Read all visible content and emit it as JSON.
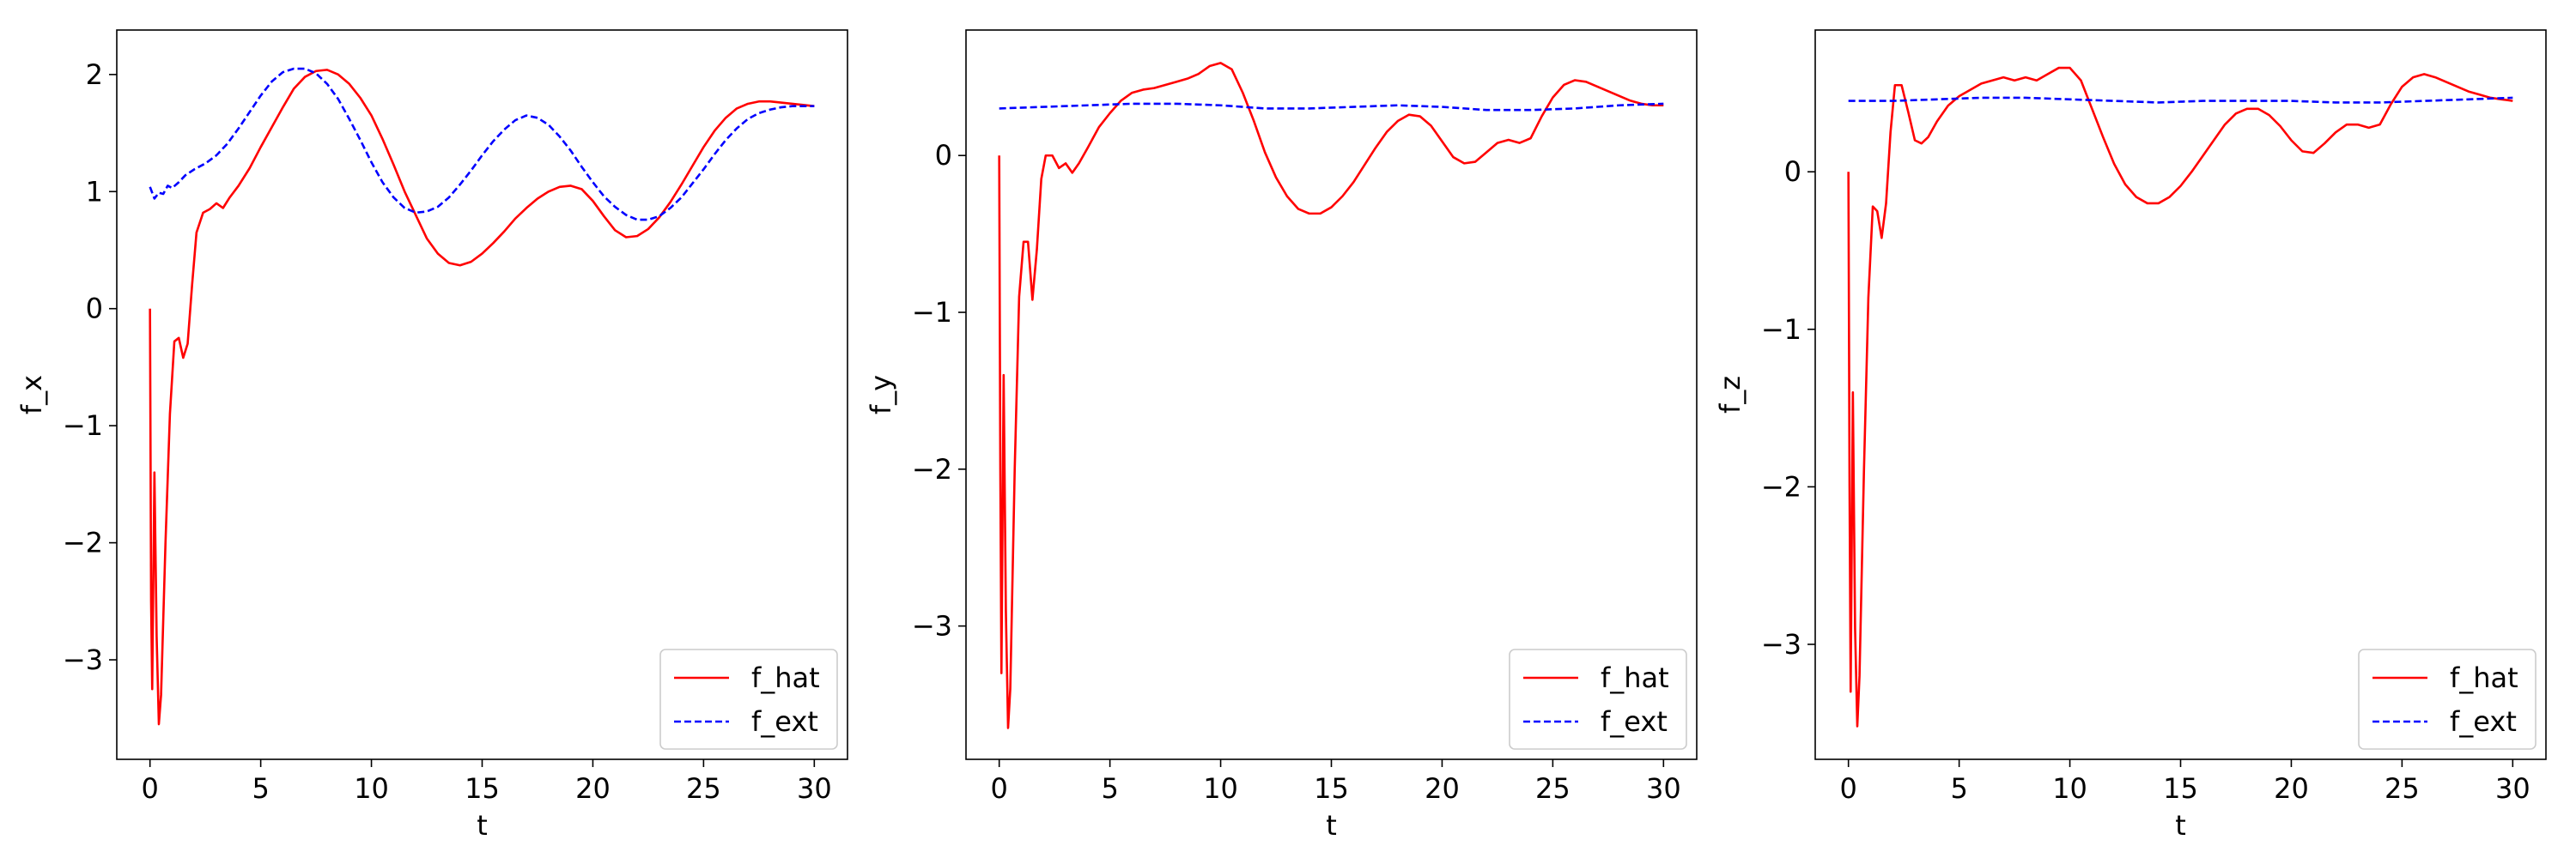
{
  "chart_data": [
    {
      "type": "line",
      "title": "",
      "xlabel": "t",
      "ylabel": "f_x",
      "xlim": [
        -1.5,
        31.5
      ],
      "ylim": [
        -3.85,
        2.38
      ],
      "xticks": [
        0,
        5,
        10,
        15,
        20,
        25,
        30
      ],
      "yticks": [
        -3,
        -2,
        -1,
        0,
        1,
        2
      ],
      "grid": false,
      "legend_position": "lower-right",
      "series": [
        {
          "name": "f_hat",
          "color": "#ff0000",
          "style": "solid",
          "x": [
            0,
            0.05,
            0.1,
            0.2,
            0.3,
            0.4,
            0.5,
            0.7,
            0.9,
            1.1,
            1.3,
            1.5,
            1.7,
            1.9,
            2.1,
            2.4,
            2.7,
            3.0,
            3.3,
            3.6,
            4,
            4.5,
            5,
            5.5,
            6,
            6.5,
            7,
            7.5,
            8,
            8.5,
            9,
            9.5,
            10,
            10.5,
            11,
            11.5,
            12,
            12.5,
            13,
            13.5,
            14,
            14.5,
            15,
            15.5,
            16,
            16.5,
            17,
            17.5,
            18,
            18.5,
            19,
            19.5,
            20,
            20.5,
            21,
            21.5,
            22,
            22.5,
            23,
            23.5,
            24,
            24.5,
            25,
            25.5,
            26,
            26.5,
            27,
            27.5,
            28,
            28.5,
            29,
            29.5,
            30
          ],
          "values": [
            0,
            -2.5,
            -3.25,
            -1.4,
            -2.8,
            -3.55,
            -3.3,
            -2.0,
            -0.9,
            -0.28,
            -0.25,
            -0.42,
            -0.3,
            0.2,
            0.65,
            0.82,
            0.85,
            0.9,
            0.86,
            0.95,
            1.05,
            1.2,
            1.38,
            1.55,
            1.72,
            1.88,
            1.98,
            2.03,
            2.04,
            2.0,
            1.92,
            1.8,
            1.65,
            1.45,
            1.23,
            1.0,
            0.8,
            0.6,
            0.47,
            0.39,
            0.37,
            0.4,
            0.47,
            0.56,
            0.66,
            0.77,
            0.86,
            0.94,
            1.0,
            1.04,
            1.05,
            1.02,
            0.92,
            0.79,
            0.67,
            0.61,
            0.62,
            0.68,
            0.78,
            0.91,
            1.06,
            1.22,
            1.38,
            1.52,
            1.63,
            1.71,
            1.75,
            1.77,
            1.77,
            1.76,
            1.75,
            1.74,
            1.73
          ]
        },
        {
          "name": "f_ext",
          "color": "#0000ff",
          "style": "dashed",
          "x": [
            0,
            0.2,
            0.4,
            0.6,
            0.8,
            1.0,
            1.3,
            1.6,
            2.0,
            2.5,
            3,
            3.5,
            4,
            4.5,
            5,
            5.5,
            6,
            6.5,
            7,
            7.5,
            8,
            8.5,
            9,
            9.5,
            10,
            10.5,
            11,
            11.5,
            12,
            12.5,
            13,
            13.5,
            14,
            14.5,
            15,
            15.5,
            16,
            16.5,
            17,
            17.5,
            18,
            18.5,
            19,
            19.5,
            20,
            20.5,
            21,
            21.5,
            22,
            22.5,
            23,
            23.5,
            24,
            24.5,
            25,
            25.5,
            26,
            26.5,
            27,
            27.5,
            28,
            28.5,
            29,
            29.5,
            30
          ],
          "values": [
            1.04,
            0.94,
            0.99,
            0.98,
            1.05,
            1.03,
            1.08,
            1.14,
            1.19,
            1.24,
            1.31,
            1.41,
            1.54,
            1.68,
            1.82,
            1.94,
            2.02,
            2.05,
            2.05,
            2.01,
            1.92,
            1.79,
            1.62,
            1.44,
            1.25,
            1.08,
            0.95,
            0.86,
            0.82,
            0.83,
            0.87,
            0.95,
            1.06,
            1.18,
            1.31,
            1.43,
            1.53,
            1.61,
            1.65,
            1.63,
            1.57,
            1.47,
            1.35,
            1.21,
            1.08,
            0.96,
            0.87,
            0.8,
            0.76,
            0.76,
            0.79,
            0.86,
            0.95,
            1.07,
            1.19,
            1.32,
            1.44,
            1.54,
            1.62,
            1.67,
            1.7,
            1.72,
            1.73,
            1.73,
            1.73
          ]
        }
      ]
    },
    {
      "type": "line",
      "title": "",
      "xlabel": "t",
      "ylabel": "f_y",
      "xlim": [
        -1.5,
        31.5
      ],
      "ylim": [
        -3.85,
        0.8
      ],
      "xticks": [
        0,
        5,
        10,
        15,
        20,
        25,
        30
      ],
      "yticks": [
        -3,
        -2,
        -1,
        0
      ],
      "grid": false,
      "legend_position": "lower-right",
      "series": [
        {
          "name": "f_hat",
          "color": "#ff0000",
          "style": "solid",
          "x": [
            0,
            0.05,
            0.1,
            0.2,
            0.3,
            0.4,
            0.5,
            0.7,
            0.9,
            1.1,
            1.3,
            1.5,
            1.7,
            1.9,
            2.1,
            2.4,
            2.7,
            3.0,
            3.3,
            3.6,
            4,
            4.5,
            5,
            5.5,
            6,
            6.5,
            7,
            7.5,
            8,
            8.5,
            9,
            9.5,
            10,
            10.5,
            11,
            11.5,
            12,
            12.5,
            13,
            13.5,
            14,
            14.5,
            15,
            15.5,
            16,
            16.5,
            17,
            17.5,
            18,
            18.5,
            19,
            19.5,
            20,
            20.5,
            21,
            21.5,
            22,
            22.5,
            23,
            23.5,
            24,
            24.5,
            25,
            25.5,
            26,
            26.5,
            27,
            27.5,
            28,
            28.5,
            29,
            29.5,
            30
          ],
          "values": [
            0,
            -2.0,
            -3.3,
            -1.4,
            -2.9,
            -3.65,
            -3.4,
            -2.0,
            -0.9,
            -0.55,
            -0.55,
            -0.92,
            -0.6,
            -0.15,
            0.0,
            0.0,
            -0.08,
            -0.05,
            -0.11,
            -0.05,
            0.05,
            0.18,
            0.27,
            0.35,
            0.4,
            0.42,
            0.43,
            0.45,
            0.47,
            0.49,
            0.52,
            0.57,
            0.59,
            0.55,
            0.4,
            0.22,
            0.02,
            -0.14,
            -0.26,
            -0.34,
            -0.37,
            -0.37,
            -0.33,
            -0.26,
            -0.17,
            -0.06,
            0.05,
            0.15,
            0.22,
            0.26,
            0.25,
            0.19,
            0.09,
            -0.01,
            -0.05,
            -0.04,
            0.02,
            0.08,
            0.1,
            0.08,
            0.11,
            0.25,
            0.37,
            0.45,
            0.48,
            0.47,
            0.44,
            0.41,
            0.38,
            0.35,
            0.33,
            0.32,
            0.32
          ]
        },
        {
          "name": "f_ext",
          "color": "#0000ff",
          "style": "dashed",
          "x": [
            0,
            2,
            4,
            6,
            8,
            10,
            12,
            14,
            16,
            18,
            20,
            22,
            24,
            26,
            28,
            30
          ],
          "values": [
            0.3,
            0.31,
            0.32,
            0.33,
            0.33,
            0.32,
            0.3,
            0.3,
            0.31,
            0.32,
            0.31,
            0.29,
            0.29,
            0.3,
            0.32,
            0.33
          ]
        }
      ]
    },
    {
      "type": "line",
      "title": "",
      "xlabel": "t",
      "ylabel": "f_z",
      "xlim": [
        -1.5,
        31.5
      ],
      "ylim": [
        -3.73,
        0.9
      ],
      "xticks": [
        0,
        5,
        10,
        15,
        20,
        25,
        30
      ],
      "yticks": [
        -3,
        -2,
        -1,
        0
      ],
      "grid": false,
      "legend_position": "lower-right",
      "series": [
        {
          "name": "f_hat",
          "color": "#ff0000",
          "style": "solid",
          "x": [
            0,
            0.05,
            0.1,
            0.2,
            0.3,
            0.4,
            0.5,
            0.7,
            0.9,
            1.1,
            1.3,
            1.5,
            1.7,
            1.9,
            2.1,
            2.4,
            2.7,
            3.0,
            3.3,
            3.6,
            4,
            4.5,
            5,
            5.5,
            6,
            6.5,
            7,
            7.5,
            8,
            8.5,
            9,
            9.5,
            10,
            10.5,
            11,
            11.5,
            12,
            12.5,
            13,
            13.5,
            14,
            14.5,
            15,
            15.5,
            16,
            16.5,
            17,
            17.5,
            18,
            18.5,
            19,
            19.5,
            20,
            20.5,
            21,
            21.5,
            22,
            22.5,
            23,
            23.5,
            24,
            24.5,
            25,
            25.5,
            26,
            26.5,
            27,
            27.5,
            28,
            28.5,
            29,
            29.5,
            30
          ],
          "values": [
            0,
            -2.0,
            -3.3,
            -1.4,
            -2.9,
            -3.52,
            -3.2,
            -1.9,
            -0.8,
            -0.22,
            -0.25,
            -0.42,
            -0.2,
            0.25,
            0.55,
            0.55,
            0.38,
            0.2,
            0.18,
            0.22,
            0.32,
            0.42,
            0.48,
            0.52,
            0.56,
            0.58,
            0.6,
            0.58,
            0.6,
            0.58,
            0.62,
            0.66,
            0.66,
            0.58,
            0.4,
            0.22,
            0.05,
            -0.08,
            -0.16,
            -0.2,
            -0.2,
            -0.16,
            -0.09,
            0.0,
            0.1,
            0.2,
            0.3,
            0.37,
            0.4,
            0.4,
            0.36,
            0.29,
            0.2,
            0.13,
            0.12,
            0.18,
            0.25,
            0.3,
            0.3,
            0.28,
            0.3,
            0.43,
            0.54,
            0.6,
            0.62,
            0.6,
            0.57,
            0.54,
            0.51,
            0.49,
            0.47,
            0.46,
            0.45
          ]
        },
        {
          "name": "f_ext",
          "color": "#0000ff",
          "style": "dashed",
          "x": [
            0,
            2,
            4,
            6,
            8,
            10,
            12,
            14,
            16,
            18,
            20,
            22,
            24,
            26,
            28,
            30
          ],
          "values": [
            0.45,
            0.45,
            0.46,
            0.47,
            0.47,
            0.46,
            0.45,
            0.44,
            0.45,
            0.45,
            0.45,
            0.44,
            0.44,
            0.45,
            0.46,
            0.47
          ]
        }
      ]
    }
  ]
}
